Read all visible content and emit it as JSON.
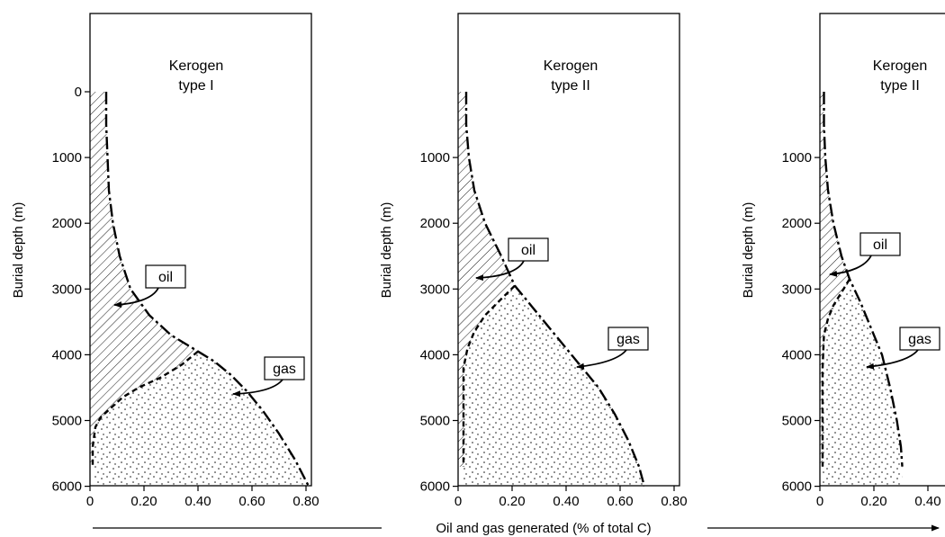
{
  "chart_data": {
    "type": "area",
    "shared_xlabel": "Oil and gas generated (% of total C)",
    "panels": [
      {
        "title_lines": [
          "Kerogen",
          "type I"
        ],
        "ylabel": "Burial depth (m)",
        "y_ticks": [
          "0",
          "1000",
          "2000",
          "3000",
          "4000",
          "5000",
          "6000"
        ],
        "x_ticks": [
          "0",
          "0.20",
          "0.40",
          "0.60",
          "0.80"
        ],
        "xlim": [
          0,
          0.85
        ],
        "ylim": [
          0,
          6000
        ],
        "total_curve": {
          "x": [
            0.06,
            0.06,
            0.065,
            0.07,
            0.085,
            0.11,
            0.15,
            0.22,
            0.3,
            0.36,
            0.4,
            0.46,
            0.52,
            0.58,
            0.64,
            0.7,
            0.76,
            0.81
          ],
          "y": [
            0,
            500,
            1000,
            1500,
            2000,
            2500,
            3000,
            3400,
            3700,
            3850,
            3950,
            4100,
            4300,
            4550,
            4850,
            5200,
            5600,
            6000
          ]
        },
        "gas_curve": {
          "x": [
            0.4,
            0.34,
            0.26,
            0.18,
            0.12,
            0.08,
            0.04,
            0.02,
            0.01,
            0.01
          ],
          "y": [
            3950,
            4150,
            4350,
            4500,
            4650,
            4800,
            4950,
            5100,
            5400,
            5700
          ]
        },
        "oil_label": "oil",
        "gas_label": "gas"
      },
      {
        "title_lines": [
          "Kerogen",
          "type II"
        ],
        "ylabel": "Burial depth (m)",
        "y_ticks": [
          "1000",
          "2000",
          "3000",
          "4000",
          "5000",
          "6000"
        ],
        "x_ticks": [
          "0",
          "0.20",
          "0.40",
          "0.60",
          "0.80"
        ],
        "xlim": [
          0,
          0.85
        ],
        "ylim": [
          0,
          6000
        ],
        "total_curve": {
          "x": [
            0.03,
            0.03,
            0.04,
            0.06,
            0.1,
            0.16,
            0.21,
            0.28,
            0.36,
            0.44,
            0.52,
            0.58,
            0.63,
            0.67,
            0.69
          ],
          "y": [
            0,
            500,
            1000,
            1500,
            2000,
            2500,
            2950,
            3300,
            3700,
            4100,
            4500,
            4900,
            5300,
            5700,
            6000
          ]
        },
        "gas_curve": {
          "x": [
            0.21,
            0.16,
            0.1,
            0.06,
            0.035,
            0.02,
            0.02,
            0.02
          ],
          "y": [
            2950,
            3150,
            3400,
            3650,
            3900,
            4200,
            5000,
            5700
          ]
        },
        "oil_label": "oil",
        "gas_label": "gas"
      },
      {
        "title_lines": [
          "Kerogen",
          "type II"
        ],
        "ylabel": "Burial depth (m)",
        "y_ticks": [
          "1000",
          "2000",
          "3000",
          "4000",
          "5000",
          "6000"
        ],
        "x_ticks": [
          "0",
          "0.20",
          "0.40"
        ],
        "xlim": [
          0,
          0.85
        ],
        "ylim": [
          0,
          6000
        ],
        "total_curve": {
          "x": [
            0.015,
            0.015,
            0.02,
            0.03,
            0.05,
            0.08,
            0.11,
            0.15,
            0.19,
            0.23,
            0.26,
            0.285,
            0.3,
            0.305
          ],
          "y": [
            0,
            500,
            1000,
            1500,
            2000,
            2500,
            2850,
            3200,
            3600,
            4000,
            4500,
            5000,
            5400,
            5700
          ]
        },
        "gas_curve": {
          "x": [
            0.11,
            0.08,
            0.05,
            0.03,
            0.015,
            0.01,
            0.01
          ],
          "y": [
            2850,
            3050,
            3250,
            3450,
            3700,
            4200,
            5700
          ]
        },
        "oil_label": "oil",
        "gas_label": "gas"
      }
    ]
  }
}
